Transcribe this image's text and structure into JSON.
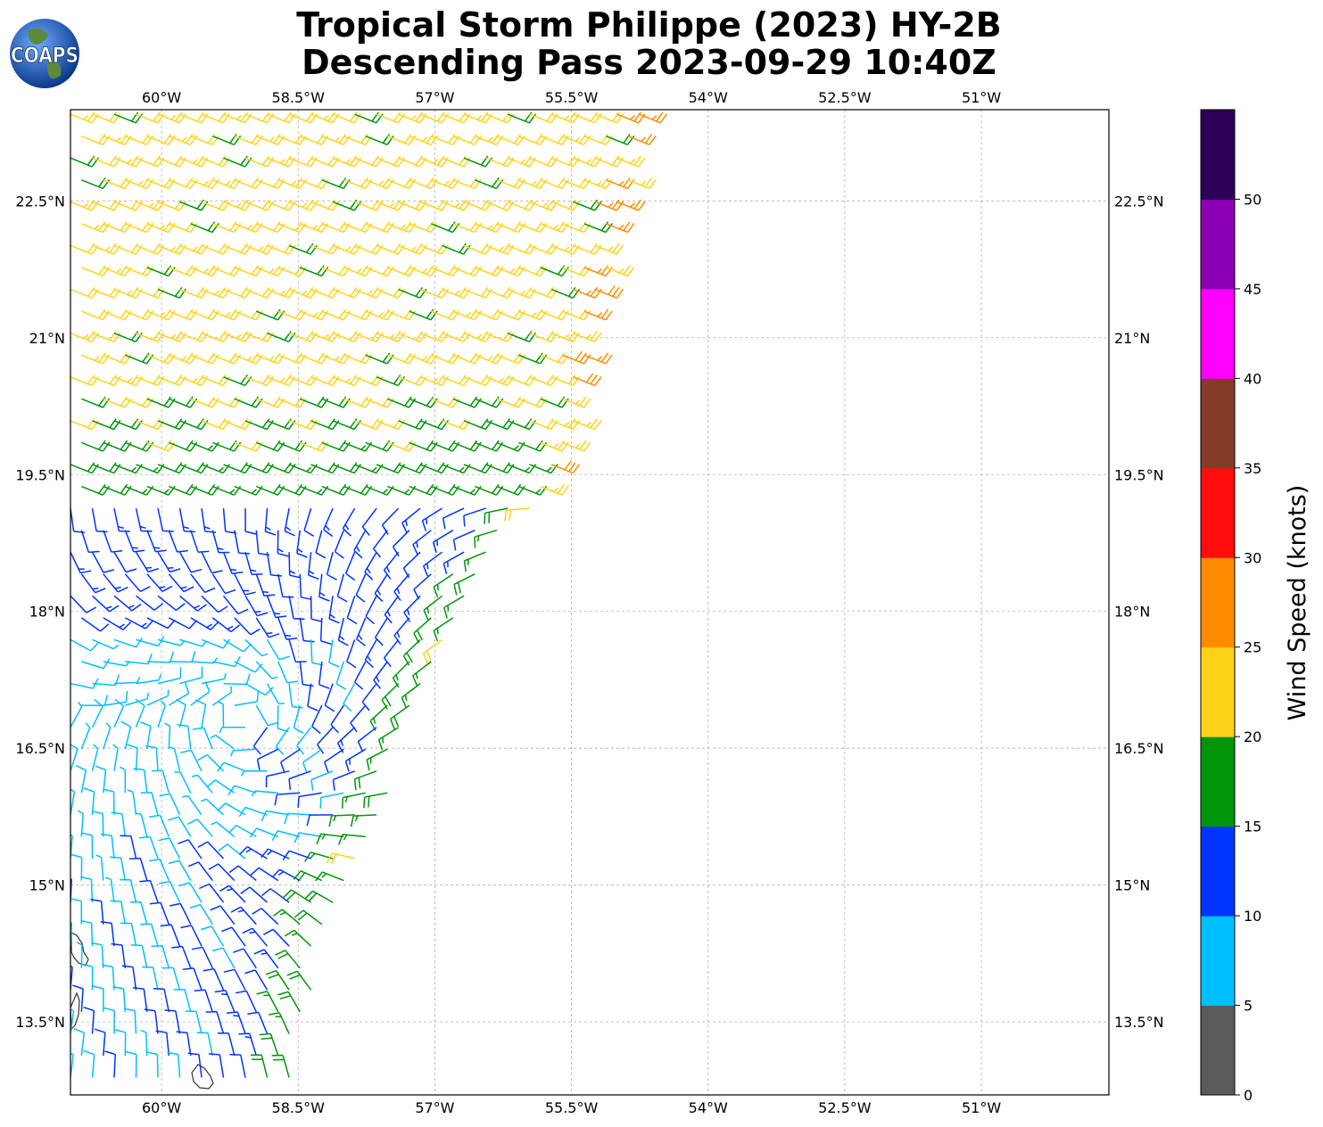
{
  "title": "Tropical Storm Philippe (2023) HY-2B",
  "subtitle": "Descending Pass 2023-09-29 10:40Z",
  "logo_text": "COAPS",
  "map": {
    "lon_range": [
      -61.0,
      -49.6
    ],
    "lat_range": [
      12.7,
      23.5
    ],
    "lon_ticks": [
      {
        "value": -60.0,
        "label": "60°W"
      },
      {
        "value": -58.5,
        "label": "58.5°W"
      },
      {
        "value": -57.0,
        "label": "57°W"
      },
      {
        "value": -55.5,
        "label": "55.5°W"
      },
      {
        "value": -54.0,
        "label": "54°W"
      },
      {
        "value": -52.5,
        "label": "52.5°W"
      },
      {
        "value": -51.0,
        "label": "51°W"
      }
    ],
    "lat_ticks": [
      {
        "value": 22.5,
        "label": "22.5°N"
      },
      {
        "value": 21.0,
        "label": "21°N"
      },
      {
        "value": 19.5,
        "label": "19.5°N"
      },
      {
        "value": 18.0,
        "label": "18°N"
      },
      {
        "value": 16.5,
        "label": "16.5°N"
      },
      {
        "value": 15.0,
        "label": "15°N"
      },
      {
        "value": 13.5,
        "label": "13.5°N"
      }
    ],
    "grid": "dashed",
    "swath_east_edge": [
      {
        "lat": 23.5,
        "lon": -54.7
      },
      {
        "lat": 19.5,
        "lon": -55.6
      },
      {
        "lat": 18.5,
        "lon": -56.4
      },
      {
        "lat": 17.5,
        "lon": -57.0
      },
      {
        "lat": 16.0,
        "lon": -57.5
      },
      {
        "lat": 14.5,
        "lon": -58.2
      },
      {
        "lat": 12.7,
        "lon": -58.6
      }
    ],
    "storm_center": {
      "lat": 16.8,
      "lon": -59.1
    }
  },
  "colorbar": {
    "label": "Wind Speed (knots)",
    "bins": [
      {
        "from": 0,
        "to": 5,
        "color": "#5a5a5a"
      },
      {
        "from": 5,
        "to": 10,
        "color": "#00bfff"
      },
      {
        "from": 10,
        "to": 15,
        "color": "#0033ff"
      },
      {
        "from": 15,
        "to": 20,
        "color": "#00960a"
      },
      {
        "from": 20,
        "to": 25,
        "color": "#ffd317"
      },
      {
        "from": 25,
        "to": 30,
        "color": "#ff8c00"
      },
      {
        "from": 30,
        "to": 35,
        "color": "#ff0d0d"
      },
      {
        "from": 35,
        "to": 40,
        "color": "#843c28"
      },
      {
        "from": 40,
        "to": 45,
        "color": "#ff00ff"
      },
      {
        "from": 45,
        "to": 50,
        "color": "#8b00b5"
      },
      {
        "from": 50,
        "to": 55,
        "color": "#2c0059"
      }
    ],
    "ticks": [
      "0",
      "5",
      "10",
      "15",
      "20",
      "25",
      "30",
      "35",
      "40",
      "45",
      "50"
    ]
  }
}
